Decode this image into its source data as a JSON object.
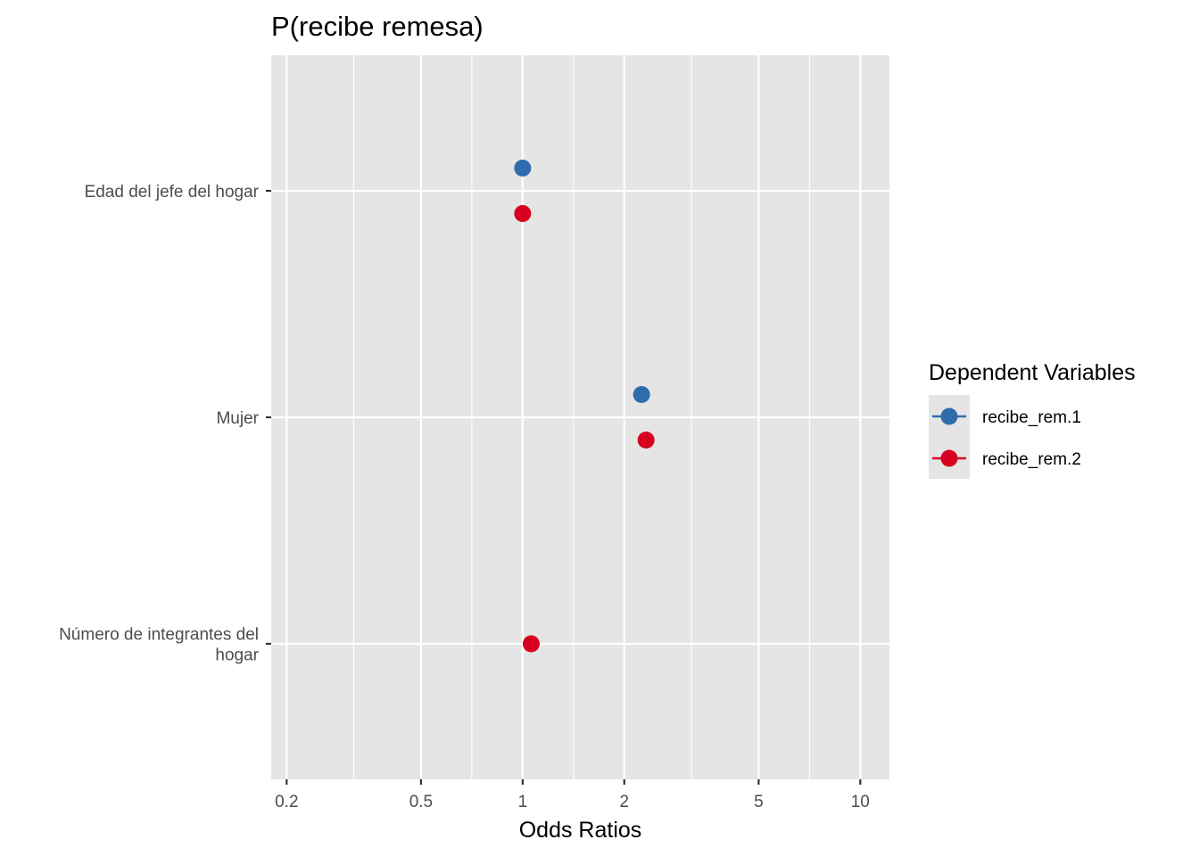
{
  "chart_data": {
    "type": "scatter",
    "title": "P(recibe remesa)",
    "xlabel": "Odds Ratios",
    "ylabel": "",
    "x_scale": "log",
    "xlim": [
      0.18,
      12.2
    ],
    "x_ticks": [
      0.2,
      0.5,
      1,
      2,
      5,
      10
    ],
    "x_tick_labels": [
      "0.2",
      "0.5",
      "1",
      "2",
      "5",
      "10"
    ],
    "x_minor_ticks": [
      0.316,
      0.707,
      1.414,
      3.162,
      7.071
    ],
    "categories": [
      [
        "Edad del jefe del hogar"
      ],
      [
        "Mujer"
      ],
      [
        "Número de integrantes del",
        "hogar"
      ]
    ],
    "grid": true,
    "legend_title": "Dependent Variables",
    "legend_position": "right",
    "series": [
      {
        "name": "recibe_rem.1",
        "color": "#2e6cad",
        "values": [
          1.0,
          2.25,
          null
        ]
      },
      {
        "name": "recibe_rem.2",
        "color": "#d7001f",
        "values": [
          1.0,
          2.32,
          1.06
        ]
      }
    ]
  }
}
